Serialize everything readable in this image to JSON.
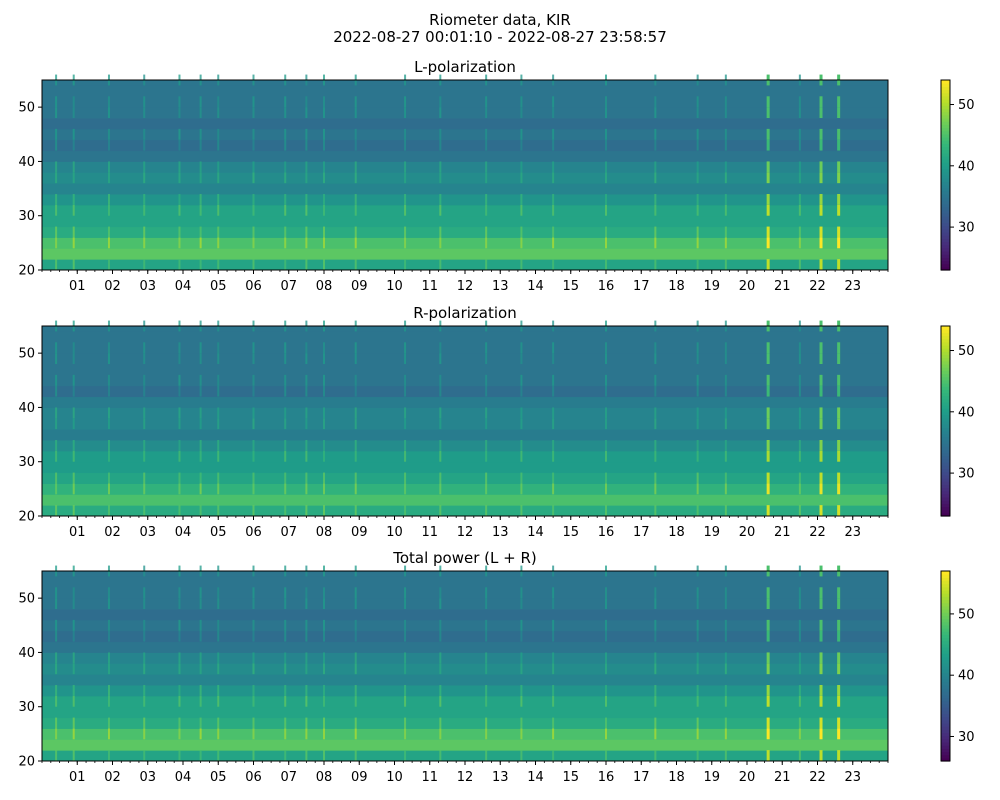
{
  "figure": {
    "title_line1": "Riometer data, KIR",
    "title_line2": "2022-08-27 00:01:10 - 2022-08-27 23:58:57"
  },
  "chart_data": [
    {
      "type": "heatmap",
      "title": "L-polarization",
      "xlabel": "",
      "ylabel": "",
      "x_ticks": [
        "01",
        "02",
        "03",
        "04",
        "05",
        "06",
        "07",
        "08",
        "09",
        "10",
        "11",
        "12",
        "13",
        "14",
        "15",
        "16",
        "17",
        "18",
        "19",
        "20",
        "21",
        "22",
        "23"
      ],
      "xlim_hours": [
        0,
        24
      ],
      "ylim": [
        20,
        55
      ],
      "y_ticks": [
        20,
        30,
        40,
        50
      ],
      "colorbar": {
        "colormap": "viridis",
        "range": [
          23,
          54
        ],
        "ticks": [
          30,
          40,
          50
        ]
      },
      "horizontal_bands": [
        {
          "y": 21,
          "value": 41
        },
        {
          "y": 23,
          "value": 46
        },
        {
          "y": 25,
          "value": 45
        },
        {
          "y": 27,
          "value": 42
        },
        {
          "y": 29,
          "value": 41
        },
        {
          "y": 31,
          "value": 41
        },
        {
          "y": 33,
          "value": 39
        },
        {
          "y": 35,
          "value": 37
        },
        {
          "y": 37,
          "value": 38
        },
        {
          "y": 39,
          "value": 37
        },
        {
          "y": 41,
          "value": 35
        },
        {
          "y": 43,
          "value": 34
        },
        {
          "y": 45,
          "value": 35
        },
        {
          "y": 47,
          "value": 34
        },
        {
          "y": 49,
          "value": 35
        },
        {
          "y": 51,
          "value": 35
        },
        {
          "y": 53,
          "value": 35
        },
        {
          "y": 55,
          "value": 35
        }
      ],
      "bright_vertical_stripes_hours": [
        0.4,
        0.9,
        1.9,
        2.9,
        3.9,
        4.5,
        5.0,
        6.0,
        6.9,
        7.5,
        8.0,
        8.9,
        10.3,
        11.3,
        12.6,
        13.6,
        14.5,
        16.0,
        17.4,
        18.6,
        19.4,
        20.6,
        21.5,
        22.1,
        22.6
      ],
      "strongest_stripes_hours": [
        20.6,
        22.1,
        22.6
      ]
    },
    {
      "type": "heatmap",
      "title": "R-polarization",
      "xlabel": "",
      "ylabel": "",
      "x_ticks": [
        "01",
        "02",
        "03",
        "04",
        "05",
        "06",
        "07",
        "08",
        "09",
        "10",
        "11",
        "12",
        "13",
        "14",
        "15",
        "16",
        "17",
        "18",
        "19",
        "20",
        "21",
        "22",
        "23"
      ],
      "xlim_hours": [
        0,
        24
      ],
      "ylim": [
        20,
        55
      ],
      "y_ticks": [
        20,
        30,
        40,
        50
      ],
      "colorbar": {
        "colormap": "viridis",
        "range": [
          23,
          54
        ],
        "ticks": [
          30,
          40,
          50
        ]
      },
      "horizontal_bands": [
        {
          "y": 21,
          "value": 42
        },
        {
          "y": 23,
          "value": 45
        },
        {
          "y": 25,
          "value": 43
        },
        {
          "y": 27,
          "value": 41
        },
        {
          "y": 29,
          "value": 40
        },
        {
          "y": 31,
          "value": 40
        },
        {
          "y": 33,
          "value": 38
        },
        {
          "y": 35,
          "value": 36
        },
        {
          "y": 37,
          "value": 37
        },
        {
          "y": 39,
          "value": 37
        },
        {
          "y": 41,
          "value": 36
        },
        {
          "y": 43,
          "value": 34
        },
        {
          "y": 45,
          "value": 35
        },
        {
          "y": 47,
          "value": 35
        },
        {
          "y": 49,
          "value": 35
        },
        {
          "y": 51,
          "value": 35
        },
        {
          "y": 53,
          "value": 35
        },
        {
          "y": 55,
          "value": 35
        }
      ],
      "bright_vertical_stripes_hours": [
        0.4,
        0.9,
        1.9,
        2.9,
        3.9,
        4.5,
        5.0,
        6.0,
        6.9,
        7.5,
        8.0,
        8.9,
        10.3,
        11.3,
        12.6,
        13.6,
        14.5,
        16.0,
        17.4,
        18.6,
        19.4,
        20.6,
        21.5,
        22.1,
        22.6
      ],
      "strongest_stripes_hours": [
        20.6,
        22.1,
        22.6
      ]
    },
    {
      "type": "heatmap",
      "title": "Total power (L + R)",
      "xlabel": "",
      "ylabel": "",
      "x_ticks": [
        "01",
        "02",
        "03",
        "04",
        "05",
        "06",
        "07",
        "08",
        "09",
        "10",
        "11",
        "12",
        "13",
        "14",
        "15",
        "16",
        "17",
        "18",
        "19",
        "20",
        "21",
        "22",
        "23"
      ],
      "xlim_hours": [
        0,
        24
      ],
      "ylim": [
        20,
        55
      ],
      "y_ticks": [
        20,
        30,
        40,
        50
      ],
      "colorbar": {
        "colormap": "viridis",
        "range": [
          26,
          57
        ],
        "ticks": [
          30,
          40,
          50
        ]
      },
      "horizontal_bands": [
        {
          "y": 21,
          "value": 44
        },
        {
          "y": 23,
          "value": 49
        },
        {
          "y": 25,
          "value": 48
        },
        {
          "y": 27,
          "value": 45
        },
        {
          "y": 29,
          "value": 44
        },
        {
          "y": 31,
          "value": 44
        },
        {
          "y": 33,
          "value": 42
        },
        {
          "y": 35,
          "value": 40
        },
        {
          "y": 37,
          "value": 41
        },
        {
          "y": 39,
          "value": 40
        },
        {
          "y": 41,
          "value": 38
        },
        {
          "y": 43,
          "value": 37
        },
        {
          "y": 45,
          "value": 38
        },
        {
          "y": 47,
          "value": 37
        },
        {
          "y": 49,
          "value": 38
        },
        {
          "y": 51,
          "value": 38
        },
        {
          "y": 53,
          "value": 38
        },
        {
          "y": 55,
          "value": 38
        }
      ],
      "bright_vertical_stripes_hours": [
        0.4,
        0.9,
        1.9,
        2.9,
        3.9,
        4.5,
        5.0,
        6.0,
        6.9,
        7.5,
        8.0,
        8.9,
        10.3,
        11.3,
        12.6,
        13.6,
        14.5,
        16.0,
        17.4,
        18.6,
        19.4,
        20.6,
        21.5,
        22.1,
        22.6
      ],
      "strongest_stripes_hours": [
        20.6,
        22.1,
        22.6
      ]
    }
  ]
}
